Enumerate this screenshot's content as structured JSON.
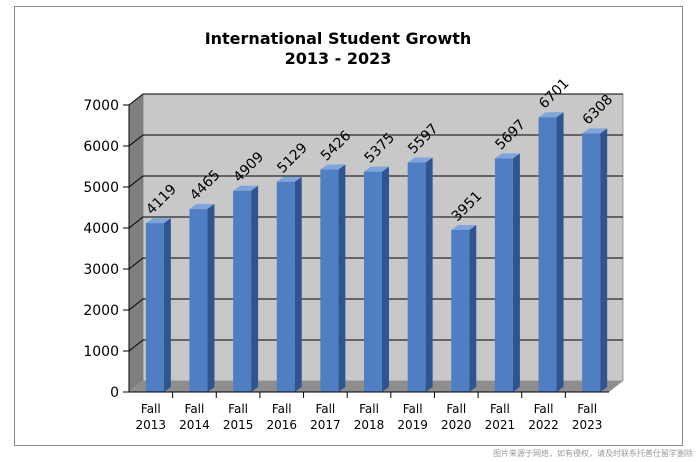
{
  "chart_data": {
    "type": "bar",
    "title": "International Student Growth",
    "subtitle": "2013 - 2023",
    "categories": [
      [
        "Fall",
        "2013"
      ],
      [
        "Fall",
        "2014"
      ],
      [
        "Fall",
        "2015"
      ],
      [
        "Fall",
        "2016"
      ],
      [
        "Fall",
        "2017"
      ],
      [
        "Fall",
        "2018"
      ],
      [
        "Fall",
        "2019"
      ],
      [
        "Fall",
        "2020"
      ],
      [
        "Fall",
        "2021"
      ],
      [
        "Fall",
        "2022"
      ],
      [
        "Fall",
        "2023"
      ]
    ],
    "values": [
      4119,
      4465,
      4909,
      5129,
      5426,
      5375,
      5597,
      3951,
      5697,
      6701,
      6308
    ],
    "data_labels": [
      "4119",
      "4465",
      "4909",
      "5129",
      "5426",
      "5375",
      "5597",
      "3951",
      "5697",
      "6701",
      "6308"
    ],
    "y_ticks": [
      0,
      1000,
      2000,
      3000,
      4000,
      5000,
      6000,
      7000
    ],
    "ylim": [
      0,
      7000
    ],
    "xlabel": "",
    "ylabel": "",
    "grid": true,
    "legend": "none",
    "style": "3d",
    "colors": {
      "bar_front": "#4f7ec2",
      "bar_side": "#2f5590",
      "bar_top": "#7fa6dc",
      "plot_wall": "#c8c8c8",
      "side_wall": "#7f7f7f",
      "floor": "#8e8e8e",
      "grid": "#000000"
    }
  },
  "watermark": "图片来源于网络，如有侵权，请及时联系托普仕留学删除"
}
